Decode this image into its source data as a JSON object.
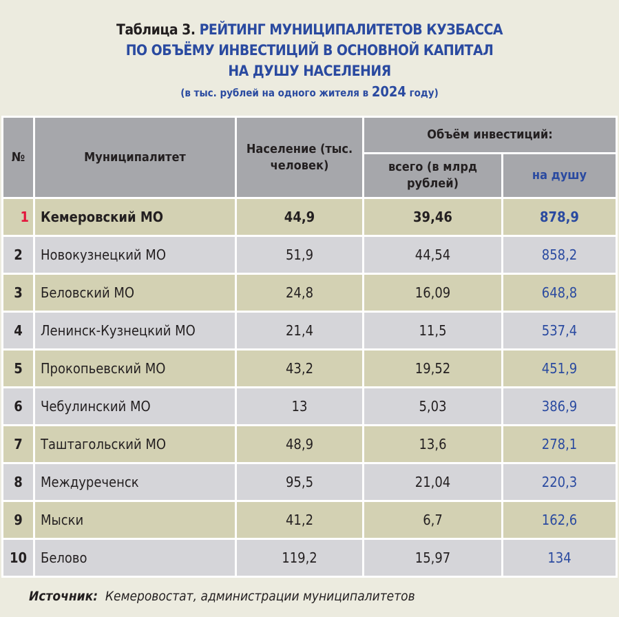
{
  "title": {
    "prefix": "Таблица 3.",
    "line1": " РЕЙТИНГ МУНИЦИПАЛИТЕТОВ КУЗБАССА",
    "line2": "ПО ОБЪЁМУ ИНВЕСТИЦИЙ В ОСНОВНОЙ КАПИТАЛ",
    "line3": "НА ДУШУ НАСЕЛЕНИЯ",
    "sub_before": "(в тыс. рублей на одного жителя в ",
    "sub_year": "2024",
    "sub_after": " году)"
  },
  "headers": {
    "num": "№",
    "municipality": "Муниципалитет",
    "population": "Население (тыс. человек)",
    "investment": "Объём инвестиций:",
    "total": "всего (в млрд рублей)",
    "per_capita": "на душу"
  },
  "rows": [
    {
      "num": "1",
      "name": "Кемеровский МО",
      "population": "44,9",
      "total": "39,46",
      "per_capita": "878,9"
    },
    {
      "num": "2",
      "name": "Новокузнецкий МО",
      "population": "51,9",
      "total": "44,54",
      "per_capita": "858,2"
    },
    {
      "num": "3",
      "name": "Беловский МО",
      "population": "24,8",
      "total": "16,09",
      "per_capita": "648,8"
    },
    {
      "num": "4",
      "name": "Ленинск-Кузнецкий МО",
      "population": "21,4",
      "total": "11,5",
      "per_capita": "537,4"
    },
    {
      "num": "5",
      "name": "Прокопьевский МО",
      "population": "43,2",
      "total": "19,52",
      "per_capita": "451,9"
    },
    {
      "num": "6",
      "name": "Чебулинский МО",
      "population": "13",
      "total": "5,03",
      "per_capita": "386,9"
    },
    {
      "num": "7",
      "name": "Таштагольский МО",
      "population": "48,9",
      "total": "13,6",
      "per_capita": "278,1"
    },
    {
      "num": "8",
      "name": "Междуреченск",
      "population": "95,5",
      "total": "21,04",
      "per_capita": "220,3"
    },
    {
      "num": "9",
      "name": "Мыски",
      "population": "41,2",
      "total": "6,7",
      "per_capita": "162,6"
    },
    {
      "num": "10",
      "name": "Белово",
      "population": "119,2",
      "total": "15,97",
      "per_capita": "134"
    }
  ],
  "source": {
    "label": "Источник:",
    "text": "Кемеровостат, администрации муниципалитетов"
  },
  "colors": {
    "accent_blue": "#2a4aa0",
    "highlight_red": "#e3163c",
    "header_gray": "#a6a7ab",
    "row_olive": "#d3d1b3",
    "row_gray": "#d5d5d9",
    "background": "#ecebdf"
  }
}
